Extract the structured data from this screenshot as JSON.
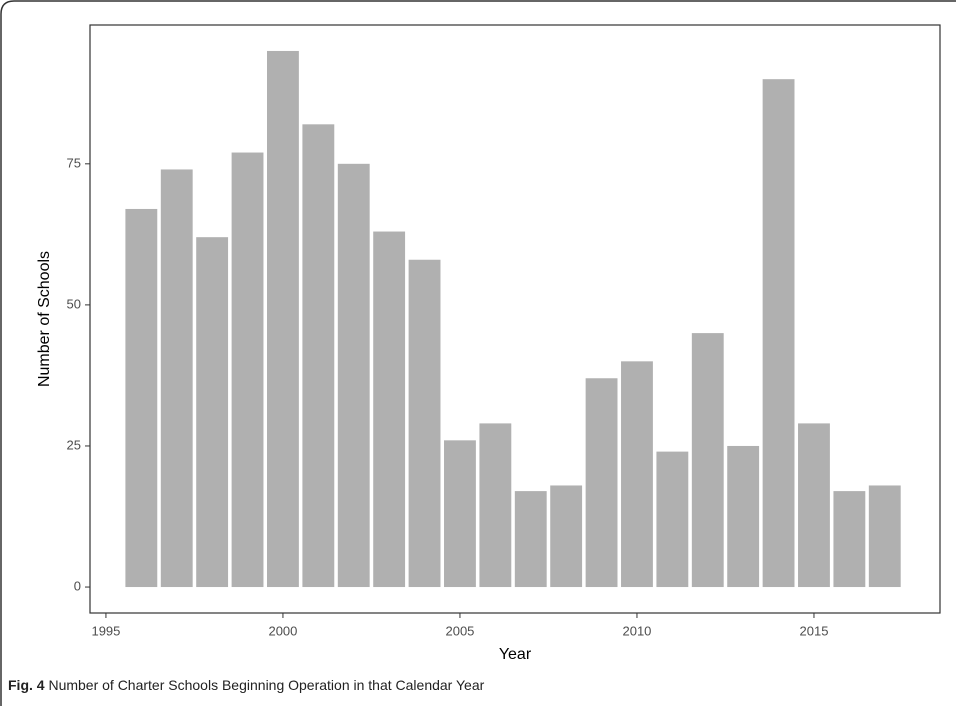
{
  "chart_data": {
    "type": "bar",
    "x_label": "Year",
    "y_label": "Number of Schools",
    "caption_label": "Fig. 4",
    "caption_text": "Number of Charter Schools Beginning Operation in that Calendar Year",
    "x": [
      1996,
      1997,
      1998,
      1999,
      2000,
      2001,
      2002,
      2003,
      2004,
      2005,
      2006,
      2007,
      2008,
      2009,
      2010,
      2011,
      2012,
      2013,
      2014,
      2015,
      2016,
      2017
    ],
    "values": [
      67,
      74,
      62,
      77,
      95,
      82,
      75,
      63,
      58,
      26,
      29,
      17,
      18,
      37,
      40,
      24,
      45,
      25,
      90,
      29,
      17,
      18
    ],
    "color": "#b0b0b0",
    "xlim": [
      1994.55,
      2018.56
    ],
    "xticks": [
      1995,
      2000,
      2005,
      2010,
      2015
    ],
    "ylim": [
      -4.6,
      99.6
    ],
    "yticks": [
      0,
      25,
      50,
      75
    ],
    "grid": false
  }
}
